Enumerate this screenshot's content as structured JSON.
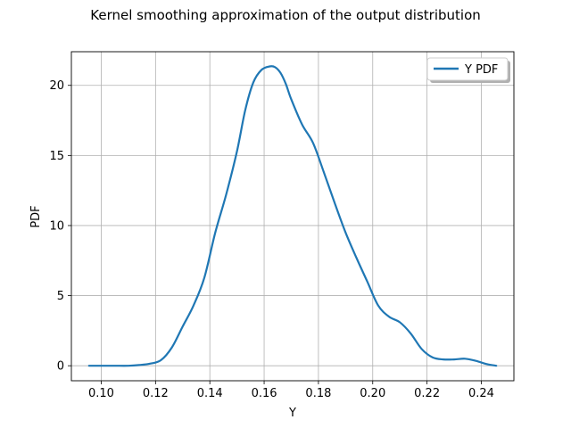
{
  "chart_data": {
    "type": "line",
    "title": "Kernel smoothing approximation of the output distribution",
    "xlabel": "Y",
    "ylabel": "PDF",
    "xlim": [
      0.089,
      0.252
    ],
    "ylim": [
      -1.07,
      22.4
    ],
    "xticks": [
      0.1,
      0.12,
      0.14,
      0.16,
      0.18,
      0.2,
      0.22,
      0.24
    ],
    "xtick_labels": [
      "0.10",
      "0.12",
      "0.14",
      "0.16",
      "0.18",
      "0.20",
      "0.22",
      "0.24"
    ],
    "yticks": [
      0,
      5,
      10,
      15,
      20
    ],
    "ytick_labels": [
      "0",
      "5",
      "10",
      "15",
      "20"
    ],
    "grid": true,
    "legend_position": "top-right",
    "series": [
      {
        "name": "Y PDF",
        "color": "#1f77b4",
        "x": [
          0.0955,
          0.1,
          0.105,
          0.11,
          0.114,
          0.118,
          0.122,
          0.126,
          0.13,
          0.134,
          0.138,
          0.142,
          0.146,
          0.15,
          0.153,
          0.156,
          0.159,
          0.162,
          0.164,
          0.166,
          0.168,
          0.17,
          0.174,
          0.178,
          0.182,
          0.186,
          0.19,
          0.194,
          0.198,
          0.202,
          0.206,
          0.21,
          0.214,
          0.218,
          0.222,
          0.226,
          0.23,
          0.234,
          0.238,
          0.242,
          0.2455
        ],
        "y": [
          0.0,
          0.0,
          0.0,
          0.0,
          0.05,
          0.15,
          0.4,
          1.3,
          2.8,
          4.3,
          6.3,
          9.5,
          12.2,
          15.3,
          18.2,
          20.2,
          21.1,
          21.35,
          21.3,
          20.9,
          20.1,
          19.0,
          17.2,
          15.9,
          13.8,
          11.6,
          9.5,
          7.7,
          6.0,
          4.3,
          3.5,
          3.1,
          2.3,
          1.2,
          0.6,
          0.45,
          0.45,
          0.5,
          0.35,
          0.12,
          0.0
        ]
      }
    ]
  }
}
